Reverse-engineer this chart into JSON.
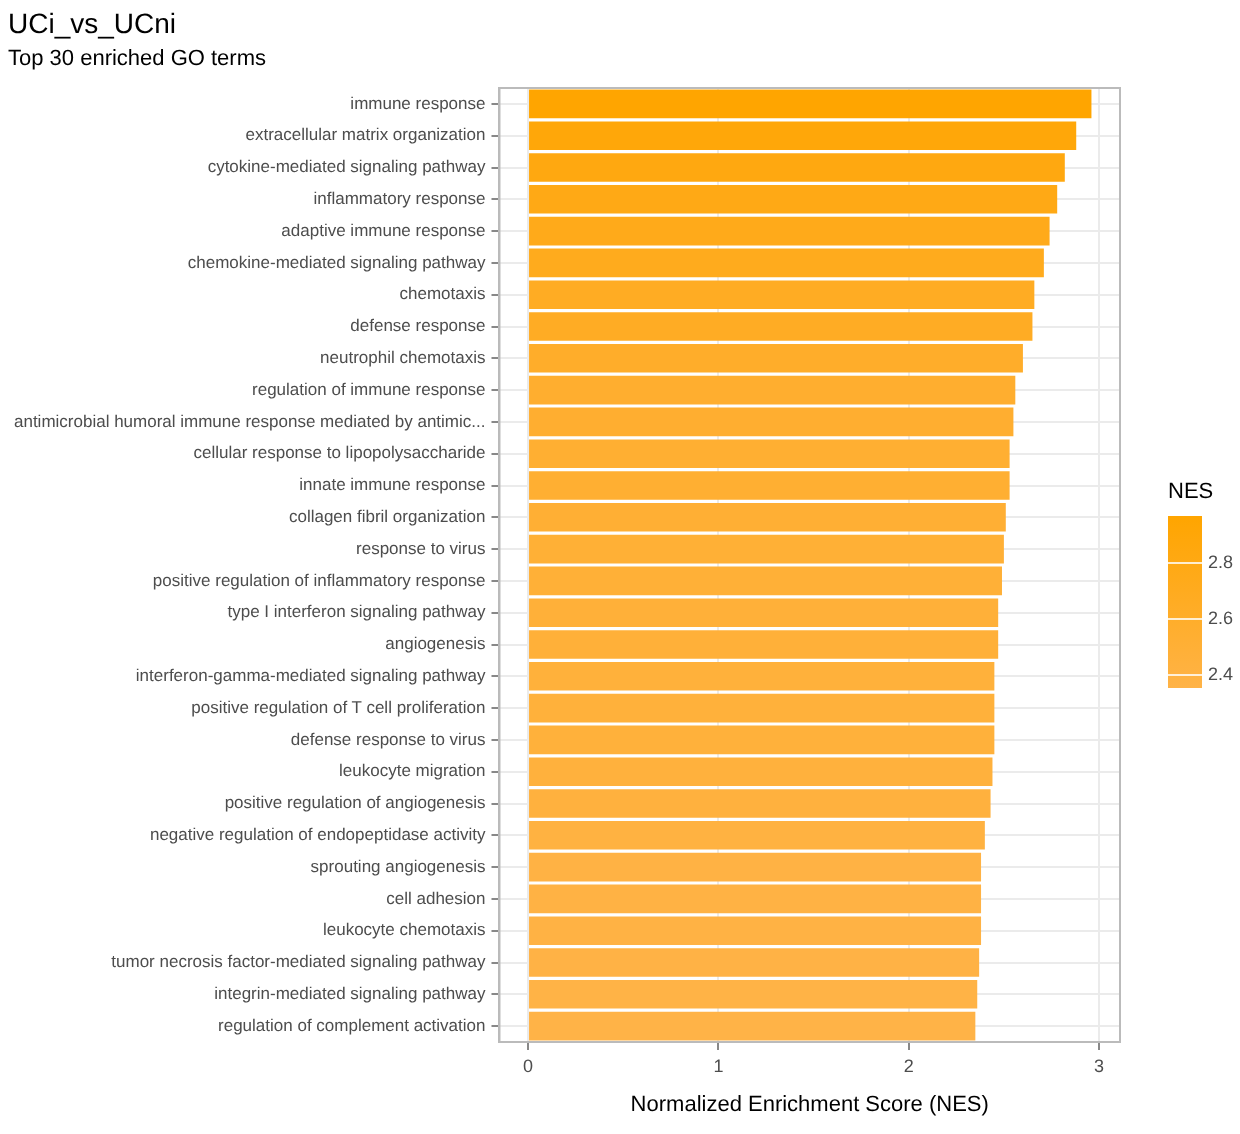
{
  "chart_data": {
    "type": "bar",
    "orientation": "horizontal",
    "title": "UCi_vs_UCni",
    "subtitle": "Top 30 enriched GO terms",
    "xlabel": "Normalized Enrichment Score (NES)",
    "clabel": "NES",
    "categories": [
      "immune response",
      "extracellular matrix organization",
      "cytokine-mediated signaling pathway",
      "inflammatory response",
      "adaptive immune response",
      "chemokine-mediated signaling pathway",
      "chemotaxis",
      "defense response",
      "neutrophil chemotaxis",
      "regulation of immune response",
      "antimicrobial humoral immune response mediated by antimic...",
      "cellular response to lipopolysaccharide",
      "innate immune response",
      "collagen fibril organization",
      "response to virus",
      "positive regulation of inflammatory response",
      "type I interferon signaling pathway",
      "angiogenesis",
      "interferon-gamma-mediated signaling pathway",
      "positive regulation of T cell proliferation",
      "defense response to virus",
      "leukocyte migration",
      "positive regulation of angiogenesis",
      "negative regulation of endopeptidase activity",
      "sprouting angiogenesis",
      "cell adhesion",
      "leukocyte chemotaxis",
      "tumor necrosis factor-mediated signaling pathway",
      "integrin-mediated signaling pathway",
      "regulation of complement activation"
    ],
    "values": [
      2.96,
      2.88,
      2.82,
      2.78,
      2.74,
      2.71,
      2.66,
      2.65,
      2.6,
      2.56,
      2.55,
      2.53,
      2.53,
      2.51,
      2.5,
      2.49,
      2.47,
      2.47,
      2.45,
      2.45,
      2.45,
      2.44,
      2.43,
      2.4,
      2.38,
      2.38,
      2.38,
      2.37,
      2.36,
      2.35
    ],
    "colors": [
      "#ffa500",
      "#ffa709",
      "#ffa810",
      "#ffa915",
      "#ffaa1a",
      "#ffab1d",
      "#ffac23",
      "#ffac24",
      "#ffad2a",
      "#ffae2f",
      "#ffae30",
      "#ffaf32",
      "#ffaf32",
      "#ffaf34",
      "#ffb036",
      "#ffb037",
      "#ffb039",
      "#ffb039",
      "#ffb13b",
      "#ffb13b",
      "#ffb13b",
      "#ffb13d",
      "#ffb13e",
      "#ffb241",
      "#ffb244",
      "#ffb244",
      "#ffb244",
      "#ffb245",
      "#ffb346",
      "#ffb347"
    ],
    "xlim": [
      -0.15,
      3.11
    ],
    "xticks": [
      0,
      1,
      2,
      3
    ],
    "clim": [
      2.35,
      2.96
    ],
    "cticks": [
      2.4,
      2.6,
      2.8
    ],
    "grid": true
  }
}
